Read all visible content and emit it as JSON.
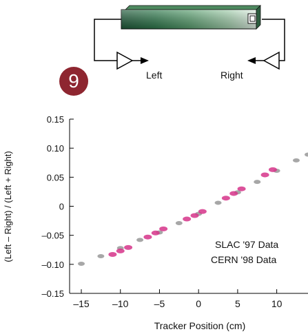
{
  "badge": {
    "number": "9",
    "color": "#8e2630"
  },
  "diagram": {
    "left_label": "Left",
    "right_label": "Right",
    "bar_colors": [
      "#1f5a3a",
      "#2f7a4d",
      "#5aa070",
      "#a6d2b0",
      "#e6f4ea"
    ],
    "end_cap_icon": "square-icon"
  },
  "chart_data": {
    "type": "scatter",
    "title": "",
    "xlabel": "Tracker Position  (cm)",
    "ylabel": "(Left – Right) / (Left + Right)",
    "xlim": [
      -16.5,
      14
    ],
    "ylim": [
      -0.15,
      0.15
    ],
    "x_ticks": [
      -15,
      -10,
      -5,
      0,
      5,
      10
    ],
    "x_tick_labels": [
      "–15",
      "–10",
      "–5",
      "0",
      "5",
      "10"
    ],
    "y_ticks": [
      0.15,
      0.1,
      0.05,
      0,
      -0.05,
      -0.1,
      -0.15
    ],
    "y_tick_labels": [
      "0.15",
      "0.10",
      "0.05",
      "0",
      "–0.05",
      "–0.10",
      "–0.15"
    ],
    "grid": false,
    "legend_position": "bottom-right",
    "series": [
      {
        "name": "SLAC '97 Data",
        "color": "#8a8a8a",
        "x": [
          -15,
          -12.5,
          -10,
          -7.5,
          -5,
          -2.5,
          0,
          2.5,
          5,
          7.5,
          10,
          12.5,
          14
        ],
        "y": [
          -0.099,
          -0.086,
          -0.072,
          -0.058,
          -0.045,
          -0.029,
          -0.013,
          0.006,
          0.024,
          0.042,
          0.061,
          0.079,
          0.089
        ]
      },
      {
        "name": "CERN '98 Data",
        "color": "#d6348a",
        "x": [
          -11,
          -10,
          -9,
          -6.5,
          -5.5,
          -4.5,
          -1.5,
          -0.5,
          0.5,
          3.5,
          4.5,
          5.5,
          8.5,
          9.5
        ],
        "y": [
          -0.083,
          -0.077,
          -0.071,
          -0.053,
          -0.046,
          -0.039,
          -0.022,
          -0.016,
          -0.009,
          0.014,
          0.022,
          0.03,
          0.054,
          0.063
        ]
      }
    ]
  }
}
